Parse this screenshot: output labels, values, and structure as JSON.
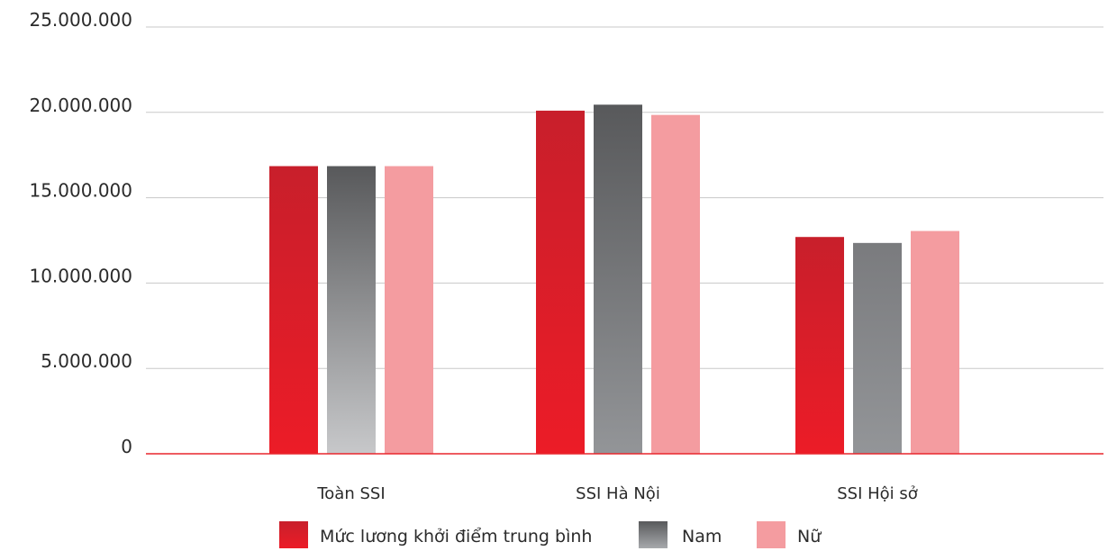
{
  "chart_data": {
    "type": "bar",
    "categories": [
      "Toàn SSI",
      "SSI Hà Nội",
      "SSI Hội sở"
    ],
    "series": [
      {
        "name": "Mức lương khởi điểm trung bình",
        "values": [
          16850000,
          20100000,
          12700000
        ],
        "color": "#d9232a"
      },
      {
        "name": "Nam",
        "values": [
          16850000,
          20450000,
          12350000
        ],
        "color": "#6d6e71"
      },
      {
        "name": "Nữ",
        "values": [
          16850000,
          19850000,
          13050000
        ],
        "color": "#f49ca0"
      }
    ],
    "yticks": [
      "0",
      "5.000.000",
      "10.000.000",
      "15.000.000",
      "20.000.000",
      "25.000.000"
    ],
    "ylim": [
      0,
      25000000
    ],
    "grid": true,
    "legend_position": "bottom"
  }
}
